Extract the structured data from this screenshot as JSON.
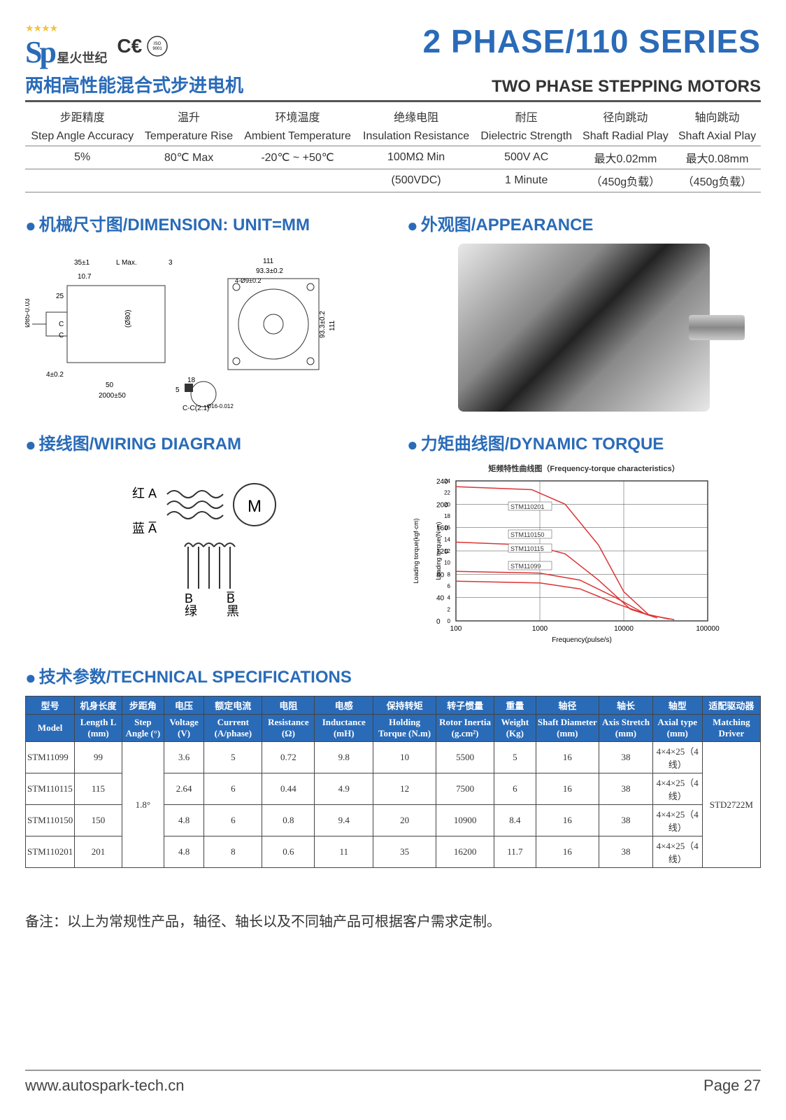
{
  "header": {
    "logo_sp": "Sp",
    "logo_cn": "星火世纪",
    "stars": "★★★★",
    "ce": "C€",
    "main_title": "2 PHASE/110 SERIES"
  },
  "subhead": {
    "cn": "两相高性能混合式步进电机",
    "en": "TWO PHASE STEPPING MOTORS"
  },
  "params": {
    "cols_cn": [
      "步距精度",
      "温升",
      "环境温度",
      "绝缘电阻",
      "耐压",
      "径向跳动",
      "轴向跳动"
    ],
    "cols_en": [
      "Step Angle Accuracy",
      "Temperature Rise",
      "Ambient Temperature",
      "Insulation Resistance",
      "Dielectric Strength",
      "Shaft Radial Play",
      "Shaft Axial Play"
    ],
    "vals1": [
      "5%",
      "80℃ Max",
      "-20℃ ~ +50℃",
      "100MΩ Min",
      "500V AC",
      "最大0.02mm",
      "最大0.08mm"
    ],
    "vals2": [
      "",
      "",
      "",
      "(500VDC)",
      "1 Minute",
      "（450g负载）",
      "（450g负载）"
    ]
  },
  "sections": {
    "dimension": "机械尺寸图/DIMENSION: UNIT=MM",
    "appearance": "外观图/APPEARANCE",
    "wiring": "接线图/WIRING DIAGRAM",
    "torque": "力矩曲线图/DYNAMIC TORQUE",
    "specs": "技术参数/TECHNICAL SPECIFICATIONS"
  },
  "dimension_labels": {
    "l1": "35±1",
    "lmax": "L Max.",
    "l3": "3",
    "w111": "111",
    "w93": "93.3±0.2",
    "l107": "10.7",
    "holes": "4-Ø9±0.2",
    "d25": "25",
    "d85": "Ø85-0.03",
    "d80": "(Ø80)",
    "tol4": "4±0.2",
    "l50": "50",
    "l2000": "2000±50",
    "l18": "18",
    "l5": "5",
    "key": "Ø16-0.012",
    "section": "C-C(2:1)",
    "c1": "C",
    "c2": "C",
    "h93": "93.3±0.2",
    "h111": "111"
  },
  "wiring": {
    "redA": "红 A",
    "blueA": "蓝 A̅",
    "B": "B",
    "Bbar": "B̅",
    "green": "绿",
    "black": "黑",
    "m": "M"
  },
  "torque": {
    "title": "矩频特性曲线图（Frequency-torque characteristics）",
    "xlabel": "Frequency(pulse/s)",
    "ylabel_left": "Loading torque(kgf·cm)",
    "ylabel_right": "Loading torque(N·m)",
    "y_left_max": 240,
    "y_left_ticks": [
      0,
      40,
      80,
      120,
      160,
      200,
      240
    ],
    "y_right_ticks": [
      0,
      2,
      4,
      6,
      8,
      10,
      12,
      14,
      16,
      18,
      20,
      22,
      24
    ],
    "x_ticks": [
      "100",
      "1000",
      "10000",
      "100000"
    ],
    "series": [
      "STM110201",
      "STM110150",
      "STM110115",
      "STM11099"
    ],
    "line_color": "#d33",
    "grid_color": "#444"
  },
  "spec_table": {
    "head_cn": [
      "型号",
      "机身长度",
      "步距角",
      "电压",
      "额定电流",
      "电阻",
      "电感",
      "保持转矩",
      "转子惯量",
      "重量",
      "轴径",
      "轴长",
      "轴型",
      "适配驱动器"
    ],
    "head_en": [
      "Model",
      "Length L (mm)",
      "Step Angle (°)",
      "Voltage (V)",
      "Current (A/phase)",
      "Resistance (Ω)",
      "Inductance (mH)",
      "Holding Torque (N.m)",
      "Rotor Inertia (g.cm²)",
      "Weight (Kg)",
      "Shaft Diameter (mm)",
      "Axis Stretch (mm)",
      "Axial type (mm)",
      "Matching Driver"
    ],
    "rows": [
      [
        "STM11099",
        "99",
        "",
        "3.6",
        "5",
        "0.72",
        "9.8",
        "10",
        "5500",
        "5",
        "16",
        "38",
        "4×4×25（4线）",
        ""
      ],
      [
        "STM110115",
        "115",
        "",
        "2.64",
        "6",
        "0.44",
        "4.9",
        "12",
        "7500",
        "6",
        "16",
        "38",
        "4×4×25（4线）",
        ""
      ],
      [
        "STM110150",
        "150",
        "",
        "4.8",
        "6",
        "0.8",
        "9.4",
        "20",
        "10900",
        "8.4",
        "16",
        "38",
        "4×4×25（4线）",
        ""
      ],
      [
        "STM110201",
        "201",
        "",
        "4.8",
        "8",
        "0.6",
        "11",
        "35",
        "16200",
        "11.7",
        "16",
        "38",
        "4×4×25（4线）",
        ""
      ]
    ],
    "step_angle_merged": "1.8°",
    "driver_merged": "STD2722M",
    "hdr_bg": "#2a6bb8",
    "hdr_fg": "#ffffff"
  },
  "note": "备注：以上为常规性产品，轴径、轴长以及不同轴产品可根据客户需求定制。",
  "footer": {
    "url": "www.autospark-tech.cn",
    "page": "Page 27"
  }
}
